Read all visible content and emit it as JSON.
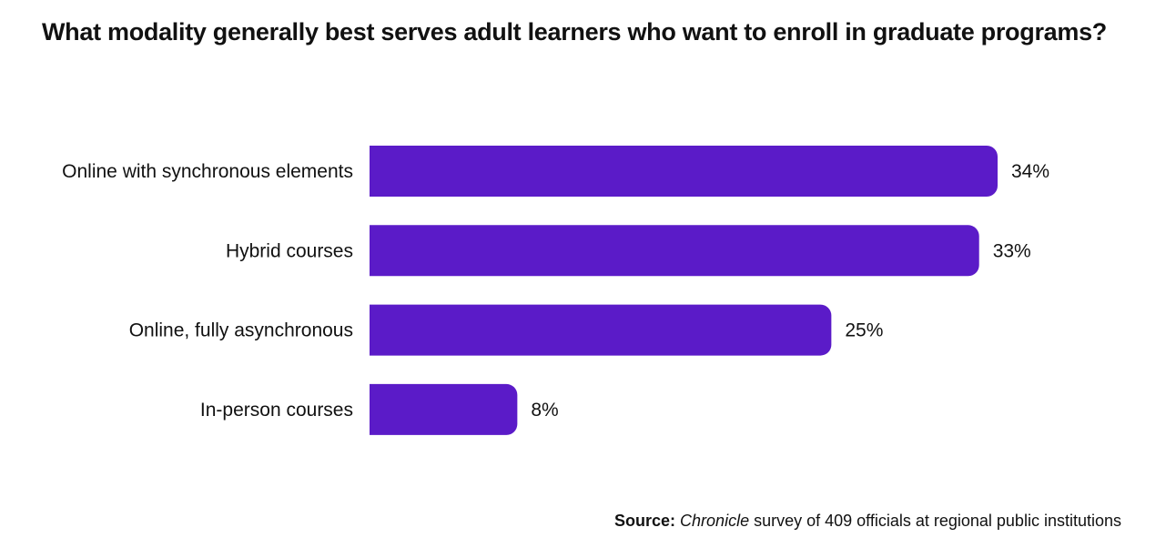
{
  "chart_data": {
    "type": "bar",
    "orientation": "horizontal",
    "title": "What modality generally best serves adult learners who want to enroll in graduate programs?",
    "categories": [
      "Online with synchronous elements",
      "Hybrid courses",
      "Online, fully asynchronous",
      "In-person courses"
    ],
    "values": [
      34,
      33,
      25,
      8
    ],
    "value_labels": [
      "34%",
      "33%",
      "25%",
      "8%"
    ],
    "unit": "%",
    "xlim": [
      0,
      34
    ],
    "grid": false,
    "bar_color": "#5b1bc8"
  },
  "source": {
    "label": "Source:",
    "publication": "Chronicle",
    "text": " survey of 409 officials at regional public institutions"
  }
}
